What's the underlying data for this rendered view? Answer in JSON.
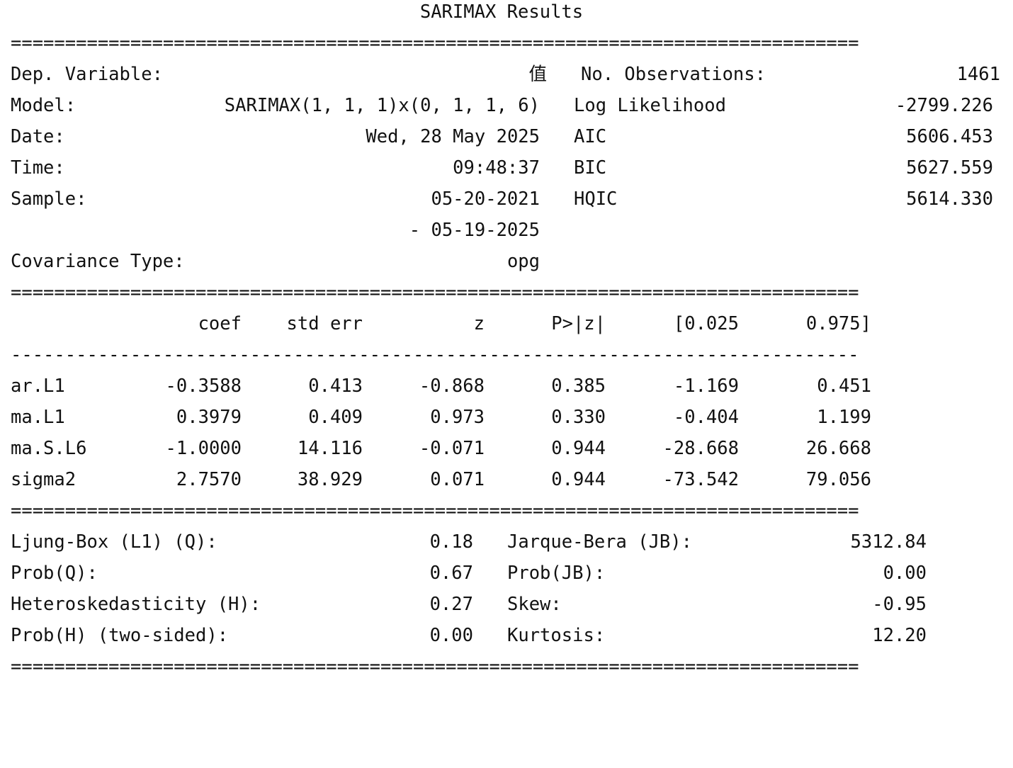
{
  "title": "SARIMAX Results",
  "rules": {
    "double": "==============================================================================",
    "double_params": "==============================================================================",
    "single": "------------------------------------------------------------------------------"
  },
  "top": {
    "left": [
      {
        "label": "Dep. Variable:",
        "value": "值"
      },
      {
        "label": "Model:",
        "value": "SARIMAX(1, 1, 1)x(0, 1, 1, 6)"
      },
      {
        "label": "Date:",
        "value": "Wed, 28 May 2025"
      },
      {
        "label": "Time:",
        "value": "09:48:37"
      },
      {
        "label": "Sample:",
        "value": "05-20-2021"
      },
      {
        "label": "",
        "value": "- 05-19-2025"
      },
      {
        "label": "Covariance Type:",
        "value": "opg"
      }
    ],
    "right": [
      {
        "label": "No. Observations:",
        "value": "1461"
      },
      {
        "label": "Log Likelihood",
        "value": "-2799.226"
      },
      {
        "label": "AIC",
        "value": "5606.453"
      },
      {
        "label": "BIC",
        "value": "5627.559"
      },
      {
        "label": "HQIC",
        "value": "5614.330"
      }
    ]
  },
  "params": {
    "columns": [
      "coef",
      "std err",
      "z",
      "P>|z|",
      "[0.025",
      "0.975]"
    ],
    "rows": [
      {
        "name": "ar.L1",
        "values": [
          "-0.3588",
          "0.413",
          "-0.868",
          "0.385",
          "-1.169",
          "0.451"
        ]
      },
      {
        "name": "ma.L1",
        "values": [
          "0.3979",
          "0.409",
          "0.973",
          "0.330",
          "-0.404",
          "1.199"
        ]
      },
      {
        "name": "ma.S.L6",
        "values": [
          "-1.0000",
          "14.116",
          "-0.071",
          "0.944",
          "-28.668",
          "26.668"
        ]
      },
      {
        "name": "sigma2",
        "values": [
          "2.7570",
          "38.929",
          "0.071",
          "0.944",
          "-73.542",
          "79.056"
        ]
      }
    ]
  },
  "diagnostics": {
    "left": [
      {
        "label": "Ljung-Box (L1) (Q):",
        "value": "0.18"
      },
      {
        "label": "Prob(Q):",
        "value": "0.67"
      },
      {
        "label": "Heteroskedasticity (H):",
        "value": "0.27"
      },
      {
        "label": "Prob(H) (two-sided):",
        "value": "0.00"
      }
    ],
    "right": [
      {
        "label": "Jarque-Bera (JB):",
        "value": "5312.84"
      },
      {
        "label": "Prob(JB):",
        "value": "0.00"
      },
      {
        "label": "Skew:",
        "value": "-0.95"
      },
      {
        "label": "Kurtosis:",
        "value": "12.20"
      }
    ]
  }
}
